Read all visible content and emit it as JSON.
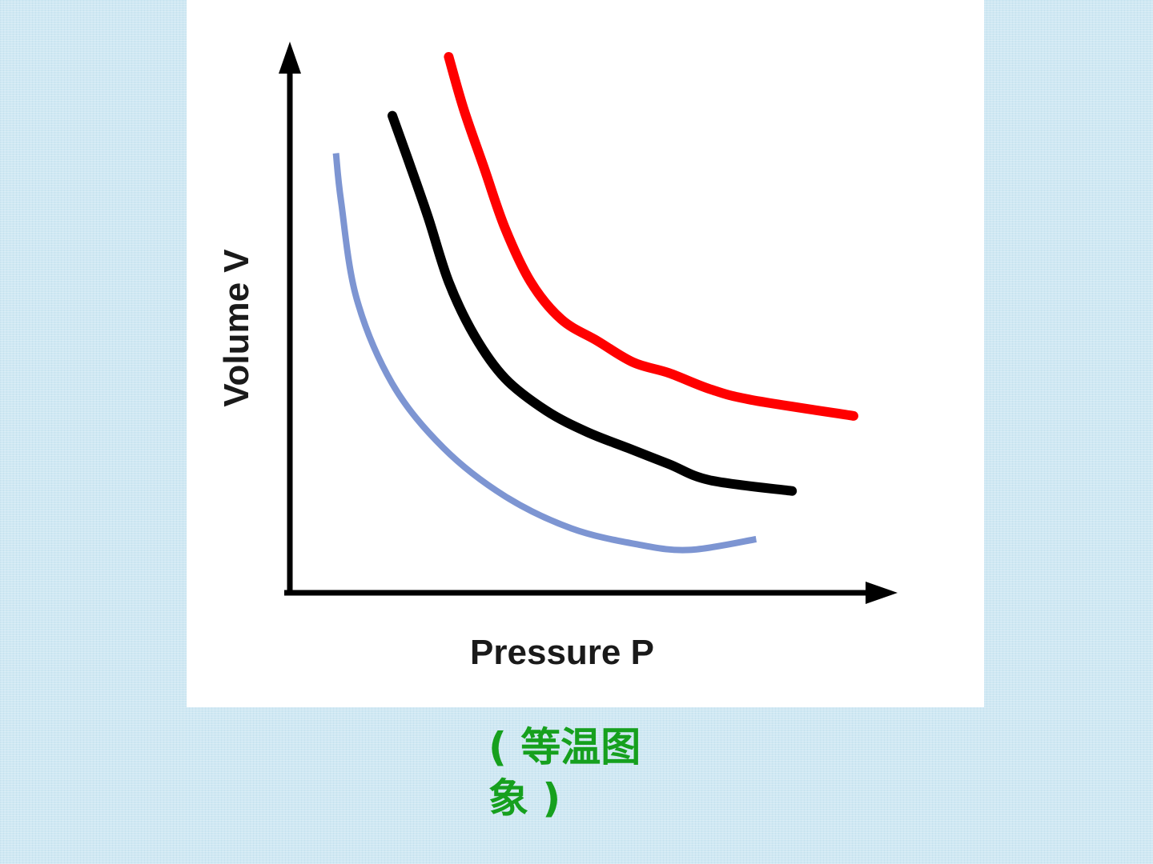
{
  "slide": {
    "background_color": "#cfe8f3",
    "caption": "( 等温图象 )",
    "caption_color": "#16a01e"
  },
  "chart_data": {
    "type": "line",
    "title": "",
    "xlabel": "Pressure P",
    "ylabel": "Volume V",
    "axis_ticks": false,
    "grid": false,
    "legend": "none",
    "xlim": [
      0,
      1
    ],
    "ylim": [
      0,
      1
    ],
    "series": [
      {
        "color": "#7d95d2",
        "x": [
          0.09,
          0.1,
          0.13,
          0.2,
          0.3,
          0.42,
          0.55,
          0.68,
          0.78,
          0.91
        ],
        "y": [
          0.82,
          0.73,
          0.55,
          0.39,
          0.27,
          0.18,
          0.12,
          0.09,
          0.08,
          0.1
        ]
      },
      {
        "color": "#000000",
        "x": [
          0.2,
          0.23,
          0.27,
          0.31,
          0.36,
          0.42,
          0.5,
          0.58,
          0.66,
          0.74,
          0.82,
          0.98
        ],
        "y": [
          0.89,
          0.81,
          0.7,
          0.58,
          0.48,
          0.4,
          0.34,
          0.3,
          0.27,
          0.24,
          0.21,
          0.19
        ]
      },
      {
        "color": "#ff0000",
        "x": [
          0.31,
          0.34,
          0.38,
          0.42,
          0.47,
          0.53,
          0.6,
          0.67,
          0.74,
          0.82,
          0.9,
          1.1
        ],
        "y": [
          1.0,
          0.9,
          0.79,
          0.68,
          0.58,
          0.51,
          0.47,
          0.43,
          0.41,
          0.38,
          0.36,
          0.33
        ]
      }
    ]
  }
}
